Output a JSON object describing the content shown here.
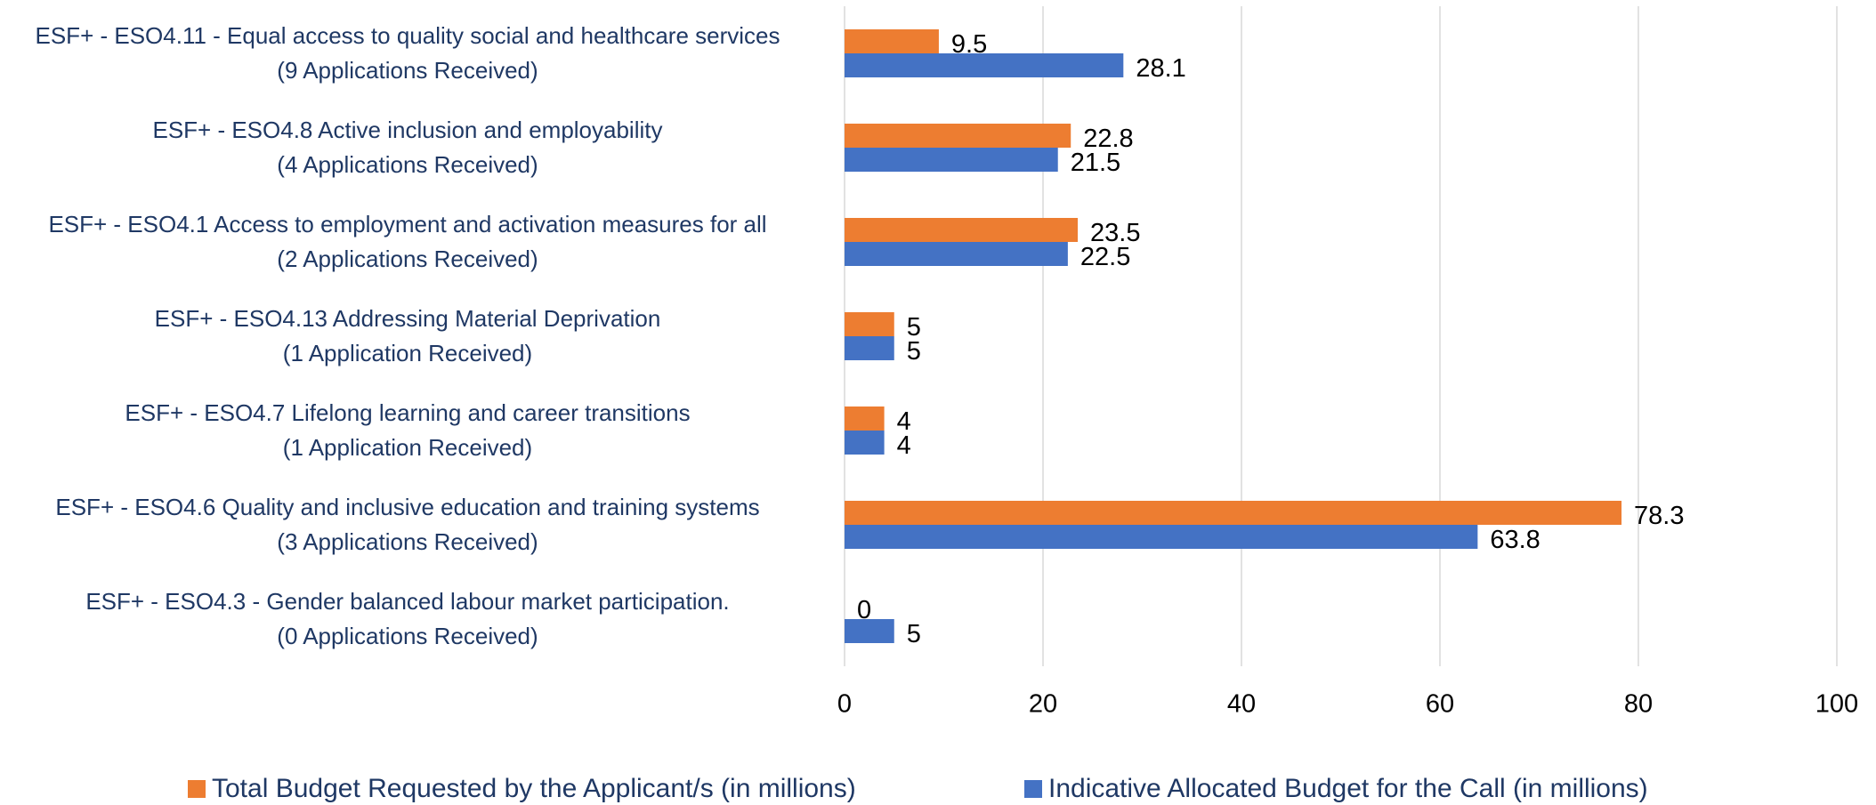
{
  "chart_data": {
    "type": "bar",
    "orientation": "horizontal",
    "categories": [
      "ESF+ - ESO4.11 - Equal access to quality social and healthcare services\n(9 Applications Received)",
      "ESF+ - ESO4.8 Active inclusion and employability\n(4 Applications Received)",
      "ESF+ - ESO4.1 Access to employment and activation measures for all\n(2 Applications Received)",
      "ESF+ - ESO4.13 Addressing Material Deprivation\n(1 Application Received)",
      "ESF+ - ESO4.7 Lifelong learning and career transitions\n(1 Application Received)",
      "ESF+ - ESO4.6 Quality and inclusive education and training systems\n(3 Applications Received)",
      "ESF+ - ESO4.3 - Gender balanced labour market participation.\n(0 Applications Received)"
    ],
    "series": [
      {
        "name": "Total Budget Requested by the Applicant/s (in millions)",
        "color": "#ed7d31",
        "values": [
          9.5,
          22.8,
          23.5,
          5,
          4,
          78.3,
          0
        ]
      },
      {
        "name": "Indicative Allocated Budget for the Call (in millions)",
        "color": "#4472c4",
        "values": [
          28.1,
          21.5,
          22.5,
          5,
          4,
          63.8,
          5
        ]
      }
    ],
    "xlim": [
      0,
      100
    ],
    "xticks": [
      0,
      20,
      40,
      60,
      80,
      100
    ],
    "grid": true,
    "legend": "bottom"
  }
}
